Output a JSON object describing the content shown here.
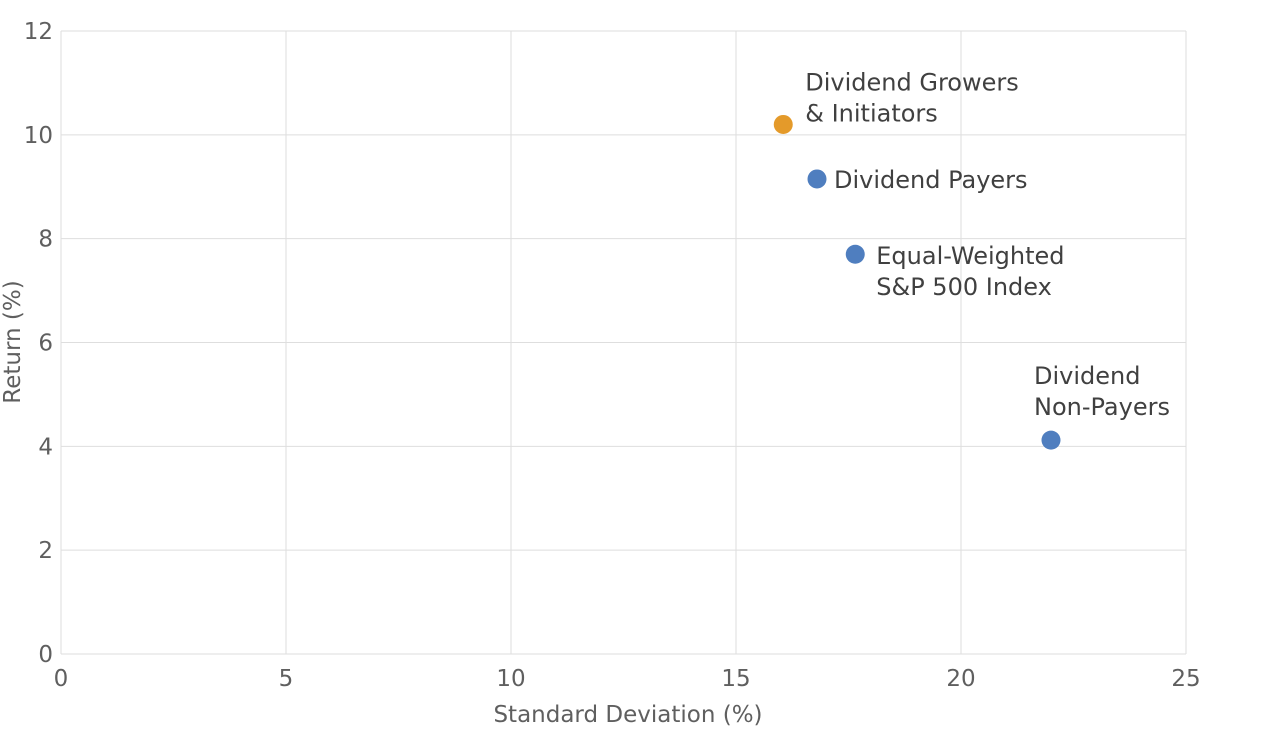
{
  "chart_data": {
    "type": "scatter",
    "title": "",
    "xlabel": "Standard Deviation (%)",
    "ylabel": "Return (%)",
    "xlim": [
      0,
      25
    ],
    "ylim": [
      0,
      12
    ],
    "x_ticks": [
      "0",
      "5",
      "10",
      "15",
      "20",
      "25"
    ],
    "y_ticks": [
      "0",
      "2",
      "4",
      "6",
      "8",
      "10",
      "12"
    ],
    "grid": true,
    "legend": "none",
    "points": [
      {
        "x": 16.05,
        "y": 10.2,
        "label_lines": [
          "Dividend Growers",
          "& Initiators"
        ],
        "color": "#E49A2A"
      },
      {
        "x": 16.8,
        "y": 9.15,
        "label_lines": [
          "Dividend Payers"
        ],
        "color": "#4F7EBF"
      },
      {
        "x": 17.65,
        "y": 7.7,
        "label_lines": [
          "Equal-Weighted",
          "S&P 500 Index"
        ],
        "color": "#4F7EBF"
      },
      {
        "x": 22.0,
        "y": 4.12,
        "label_lines": [
          "Dividend",
          "Non-Payers"
        ],
        "color": "#4F7EBF"
      }
    ]
  }
}
